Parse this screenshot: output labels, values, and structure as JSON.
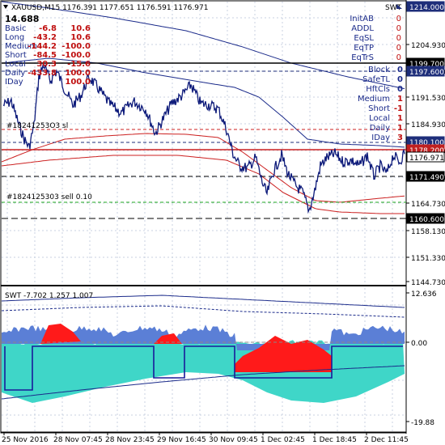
{
  "window": {
    "symbol_title": "XAUUSD,M15  1176.391 1177.651 1176.591 1176.971",
    "bid_price": "14.688",
    "indicator_tag": "SWT"
  },
  "stats_table": {
    "rows": [
      {
        "label": "Basic",
        "v1": "-6.8",
        "v2": "10.6"
      },
      {
        "label": "Long",
        "v1": "-43.2",
        "v2": "10.6"
      },
      {
        "label": "Medium",
        "v1": "-144.2",
        "v2": "-100.0"
      },
      {
        "label": "Short",
        "v1": "-84.5",
        "v2": "-100.0"
      },
      {
        "label": "Local",
        "v1": "30.3",
        "v2": "-15.6"
      },
      {
        "label": "Daily",
        "v1": "-433.8",
        "v2": "100.0"
      },
      {
        "label": "IDay",
        "v1": "",
        "v2": "100.0"
      }
    ]
  },
  "right_panel_top": [
    {
      "label": "InitAB",
      "value": "0"
    },
    {
      "label": "ADDL",
      "value": "0"
    },
    {
      "label": "EqSL",
      "value": "0"
    },
    {
      "label": "EqTP",
      "value": "0"
    },
    {
      "label": "EqTrS",
      "value": "0"
    }
  ],
  "right_panel_bottom": [
    {
      "label": "Block",
      "value": "0"
    },
    {
      "label": "SafeTL",
      "value": "0"
    },
    {
      "label": "HftCls",
      "value": "0"
    },
    {
      "label": "Medium",
      "value": "1"
    },
    {
      "label": "Short",
      "value": "-1"
    },
    {
      "label": "Local",
      "value": "1"
    },
    {
      "label": "Daily",
      "value": "1"
    },
    {
      "label": "IDay",
      "value": "3"
    }
  ],
  "order_labels": {
    "sl": "#18241253O3 sl",
    "sell": "#1824125303 sell 0.10"
  },
  "price_axis": {
    "ticks": [
      "1204.930",
      "1198.260",
      "1191.530",
      "1184.930",
      "1178.200",
      "1171.490",
      "1164.730",
      "1158.130",
      "1151.330",
      "1144.730"
    ],
    "markers": [
      {
        "text": "1214.000",
        "bg": "#1e2e7a"
      },
      {
        "text": "1199.700",
        "bg": "#000000"
      },
      {
        "text": "1197.600",
        "bg": "#1e2e7a"
      },
      {
        "text": "1180.100",
        "bg": "#1e2e7a"
      },
      {
        "text": "1178.200",
        "bg": "#c02020"
      },
      {
        "text": "1176.971",
        "bg": "#ffffff"
      },
      {
        "text": "1171.490",
        "bg": "#000000"
      },
      {
        "text": "1160.600",
        "bg": "#000000"
      }
    ]
  },
  "osc_panel": {
    "title": "SWT -7.702 1.257 1.007",
    "ticks": [
      "12.636",
      "0.00",
      "-19.88"
    ]
  },
  "time_axis": {
    "labels": [
      "25 Nov 2016",
      "28 Nov 07:45",
      "28 Nov 23:45",
      "29 Nov 16:45",
      "30 Nov 09:45",
      "1 Dec 02:45",
      "1 Dec 18:45",
      "2 Dec 11:45"
    ]
  },
  "colors": {
    "price_line": "#0d1a7a",
    "ma_red": "#cc2020",
    "grid": "#c8d2e0",
    "osc_fill_cyan": "#3fd6c8",
    "osc_fill_blue": "#5b7fd6",
    "osc_fill_red": "#ff1a1a"
  }
}
